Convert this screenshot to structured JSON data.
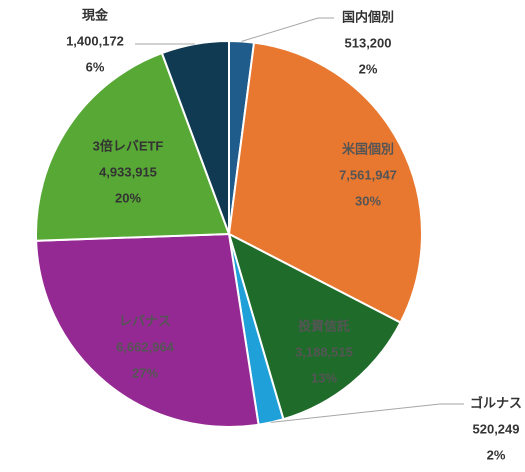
{
  "chart_data": {
    "type": "pie",
    "title": "",
    "slices": [
      {
        "label": "国内個別",
        "value": 513200,
        "value_text": "513,200",
        "percent": "2%",
        "color": "#1f5c8b"
      },
      {
        "label": "米国個別",
        "value": 7561947,
        "value_text": "7,561,947",
        "percent": "30%",
        "color": "#e8782f"
      },
      {
        "label": "投資信託",
        "value": 3188515,
        "value_text": "3,188,515",
        "percent": "13%",
        "color": "#1f6b2a"
      },
      {
        "label": "ゴルナス",
        "value": 520249,
        "value_text": "520,249",
        "percent": "2%",
        "color": "#1fa0d8"
      },
      {
        "label": "レバナス",
        "value": 6662964,
        "value_text": "6,662,964",
        "percent": "27%",
        "color": "#952993"
      },
      {
        "label": "3倍レバETF",
        "value": 4933915,
        "value_text": "4,933,915",
        "percent": "20%",
        "color": "#58a836"
      },
      {
        "label": "現金",
        "value": 1400172,
        "value_text": "1,400,172",
        "percent": "6%",
        "color": "#0f3a52"
      }
    ]
  }
}
